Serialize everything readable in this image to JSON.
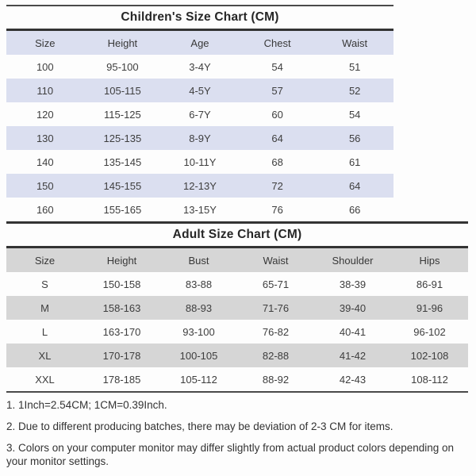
{
  "children_chart": {
    "title": "Children's Size Chart (CM)",
    "band_color": "#dbdff0",
    "columns": [
      "Size",
      "Height",
      "Age",
      "Chest",
      "Waist"
    ],
    "rows": [
      [
        "100",
        "95-100",
        "3-4Y",
        "54",
        "51"
      ],
      [
        "110",
        "105-115",
        "4-5Y",
        "57",
        "52"
      ],
      [
        "120",
        "115-125",
        "6-7Y",
        "60",
        "54"
      ],
      [
        "130",
        "125-135",
        "8-9Y",
        "64",
        "56"
      ],
      [
        "140",
        "135-145",
        "10-11Y",
        "68",
        "61"
      ],
      [
        "150",
        "145-155",
        "12-13Y",
        "72",
        "64"
      ],
      [
        "160",
        "155-165",
        "13-15Y",
        "76",
        "66"
      ]
    ]
  },
  "adult_chart": {
    "title": "Adult Size Chart (CM)",
    "band_color": "#d6d6d6",
    "columns": [
      "Size",
      "Height",
      "Bust",
      "Waist",
      "Shoulder",
      "Hips"
    ],
    "rows": [
      [
        "S",
        "150-158",
        "83-88",
        "65-71",
        "38-39",
        "86-91"
      ],
      [
        "M",
        "158-163",
        "88-93",
        "71-76",
        "39-40",
        "91-96"
      ],
      [
        "L",
        "163-170",
        "93-100",
        "76-82",
        "40-41",
        "96-102"
      ],
      [
        "XL",
        "170-178",
        "100-105",
        "82-88",
        "41-42",
        "102-108"
      ],
      [
        "XXL",
        "178-185",
        "105-112",
        "88-92",
        "42-43",
        "108-112"
      ]
    ]
  },
  "notes": [
    "1. 1Inch=2.54CM; 1CM=0.39Inch.",
    "2. Due to different producing batches, there may be deviation of 2-3 CM for items.",
    "3. Colors on your computer monitor may differ slightly from actual product colors depending on your monitor settings."
  ]
}
